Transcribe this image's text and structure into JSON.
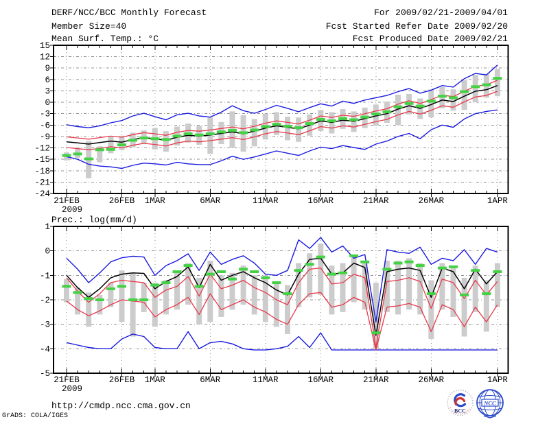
{
  "header": {
    "title": "DERF/NCC/BCC Monthly Forecast",
    "for_range": "For 2009/02/21-2009/04/01",
    "member_size": "Member Size=40",
    "fcst_started": "Fcst Started Refer Date 2009/02/20",
    "temp_label": "Mean Surf. Temp.: °C",
    "fcst_produced": "Fcst Produced Date 2009/02/21",
    "precip_label": "Prec.: log(mm/d)"
  },
  "footer": {
    "url": "http://cmdp.ncc.cma.gov.cn",
    "grads_credit": "GrADS: COLA/IGES",
    "logo_bcc_text": "BCC",
    "logo_ncc_text": "NCC"
  },
  "colors": {
    "blue": "#1a1ae0",
    "red": "#e8394a",
    "green": "#43d243",
    "black": "#000000",
    "bar_gray": "#cccccc",
    "grid_gray": "#909090",
    "frame": "#000000",
    "logo_blue": "#2b49c8",
    "logo_red": "#d03030",
    "logo_navy": "#1a2a7a"
  },
  "chart_data": [
    {
      "type": "line",
      "panel": "temperature",
      "title": "Mean Surf. Temp.: °C",
      "ylim": [
        -24,
        15
      ],
      "y_tick_values": [
        15,
        12,
        9,
        6,
        3,
        0,
        -3,
        -6,
        -9,
        -12,
        -15,
        -18,
        -21,
        -24
      ],
      "y_tick_labels": [
        "15",
        "12",
        "9",
        "6",
        "3",
        "0",
        "-3",
        "-6",
        "-9",
        "-12",
        "-15",
        "-18",
        "-21",
        "-24"
      ],
      "x_tick_labels": [
        "21FEB",
        "26FEB",
        "1MAR",
        "6MAR",
        "11MAR",
        "16MAR",
        "21MAR",
        "26MAR",
        "1APR"
      ],
      "x_tick_days": [
        0,
        5,
        8,
        13,
        18,
        23,
        28,
        33,
        39
      ],
      "year_label": "2009",
      "n_days": 40,
      "grid": true,
      "series": [
        {
          "name": "upper-envelope-blue",
          "color": "blue",
          "values": [
            -5.9,
            -6.4,
            -6.7,
            -6.2,
            -5.4,
            -4.8,
            -3.6,
            -2.9,
            -3.8,
            -4.6,
            -3.3,
            -2.9,
            -3.6,
            -3.9,
            -2.6,
            -0.9,
            -2.2,
            -2.9,
            -1.9,
            -0.8,
            -1.6,
            -2.5,
            -1.4,
            -0.4,
            -1.0,
            0.3,
            -0.3,
            0.6,
            1.2,
            1.8,
            2.8,
            3.6,
            2.4,
            3.2,
            4.4,
            4.0,
            6.2,
            7.6,
            7.2,
            9.8
          ]
        },
        {
          "name": "lower-envelope-blue",
          "color": "blue",
          "values": [
            -14.3,
            -15.0,
            -16.3,
            -16.8,
            -17.0,
            -17.4,
            -16.6,
            -16.0,
            -16.2,
            -16.5,
            -15.8,
            -16.2,
            -16.4,
            -16.4,
            -15.4,
            -14.2,
            -15.0,
            -14.4,
            -13.6,
            -12.8,
            -13.4,
            -14.0,
            -12.8,
            -11.8,
            -12.2,
            -11.4,
            -11.9,
            -12.4,
            -11.0,
            -10.2,
            -9.0,
            -8.2,
            -9.6,
            -7.2,
            -6.0,
            -6.6,
            -4.4,
            -3.0,
            -2.4,
            -2.0
          ]
        },
        {
          "name": "upper-red",
          "color": "red",
          "values": [
            -9.1,
            -9.4,
            -9.7,
            -9.3,
            -8.9,
            -9.2,
            -8.5,
            -8.0,
            -8.3,
            -8.7,
            -7.9,
            -7.4,
            -7.6,
            -7.3,
            -6.9,
            -6.5,
            -7.0,
            -6.3,
            -5.5,
            -4.9,
            -5.3,
            -5.7,
            -4.7,
            -3.6,
            -4.0,
            -3.4,
            -3.7,
            -3.0,
            -2.3,
            -1.7,
            -0.5,
            0.4,
            -0.3,
            0.7,
            1.9,
            1.5,
            2.9,
            4.2,
            4.6,
            5.8
          ]
        },
        {
          "name": "lower-red",
          "color": "red",
          "values": [
            -11.9,
            -12.2,
            -12.5,
            -12.1,
            -11.7,
            -12.0,
            -11.3,
            -10.8,
            -11.1,
            -11.5,
            -10.7,
            -10.2,
            -10.4,
            -10.1,
            -9.7,
            -9.3,
            -9.8,
            -9.1,
            -8.3,
            -7.7,
            -8.1,
            -8.5,
            -7.5,
            -6.4,
            -6.8,
            -6.2,
            -6.5,
            -5.8,
            -5.1,
            -4.5,
            -3.3,
            -2.4,
            -3.1,
            -2.1,
            -0.9,
            -1.3,
            0.1,
            1.4,
            1.8,
            2.9
          ]
        },
        {
          "name": "ensemble-mean-black",
          "color": "black",
          "values": [
            -10.4,
            -10.7,
            -11.0,
            -10.6,
            -10.2,
            -10.5,
            -9.8,
            -9.3,
            -9.6,
            -10.0,
            -9.2,
            -8.7,
            -8.9,
            -8.6,
            -8.2,
            -7.8,
            -8.3,
            -7.6,
            -6.8,
            -6.2,
            -6.6,
            -7.0,
            -6.0,
            -4.9,
            -5.3,
            -4.7,
            -5.0,
            -4.3,
            -3.6,
            -3.0,
            -1.8,
            -0.9,
            -1.6,
            -0.6,
            0.6,
            0.2,
            1.6,
            2.9,
            3.3,
            4.4
          ]
        },
        {
          "name": "obs-green-dash",
          "color": "green",
          "style": "thick-dash",
          "values": [
            -14.0,
            -13.6,
            -14.9,
            -12.5,
            -12.4,
            -11.2,
            -10.0,
            -9.4,
            -9.6,
            -9.8,
            -8.9,
            -8.3,
            -8.6,
            -8.3,
            -7.8,
            -7.4,
            -8.0,
            -7.3,
            -6.4,
            -5.8,
            -6.3,
            -6.7,
            -5.6,
            -4.5,
            -4.9,
            -4.3,
            -4.6,
            -3.9,
            -3.1,
            -2.5,
            -1.2,
            -0.3,
            -1.0,
            0.3,
            1.6,
            1.2,
            2.8,
            4.1,
            4.6,
            6.3
          ]
        }
      ],
      "bars": {
        "name": "ensemble-spread-bars",
        "color": "bar_gray",
        "low": [
          -15.3,
          -14.6,
          -20.0,
          -15.8,
          -13.4,
          -12.6,
          -11.8,
          -11.0,
          -12.4,
          -13.0,
          -11.4,
          -10.6,
          -11.2,
          -13.6,
          -11.0,
          -12.0,
          -13.0,
          -11.6,
          -9.8,
          -8.6,
          -10.0,
          -10.4,
          -8.8,
          -7.6,
          -8.2,
          -7.0,
          -7.8,
          -6.8,
          -6.2,
          -5.4,
          -6.0,
          -3.2,
          -4.4,
          -4.0,
          -1.6,
          -2.2,
          -2.0,
          0.0,
          1.2,
          1.6
        ],
        "high": [
          -13.2,
          -12.0,
          -10.2,
          -11.6,
          -9.0,
          -8.8,
          -8.0,
          -7.4,
          -6.8,
          -7.6,
          -6.4,
          -5.6,
          -6.2,
          -4.0,
          -5.2,
          -2.4,
          -3.4,
          -4.4,
          -3.0,
          -2.6,
          -3.8,
          -4.0,
          -3.2,
          -2.0,
          -2.6,
          -1.8,
          -2.4,
          -1.4,
          -0.6,
          0.2,
          2.0,
          2.2,
          1.0,
          3.4,
          4.0,
          3.4,
          5.8,
          7.2,
          7.4,
          8.8
        ]
      }
    },
    {
      "type": "line",
      "panel": "precipitation",
      "title": "Prec.: log(mm/d)",
      "ylim": [
        -5,
        1
      ],
      "y_tick_values": [
        1,
        0,
        -1,
        -2,
        -3,
        -4,
        -5
      ],
      "y_tick_labels": [
        "1",
        "0",
        "-1",
        "-2",
        "-3",
        "-4",
        "-5"
      ],
      "x_tick_labels": [
        "21FEB",
        "26FEB",
        "1MAR",
        "6MAR",
        "11MAR",
        "16MAR",
        "21MAR",
        "26MAR",
        "1APR"
      ],
      "x_tick_days": [
        0,
        5,
        8,
        13,
        18,
        23,
        28,
        33,
        39
      ],
      "year_label": "2009",
      "n_days": 40,
      "grid": true,
      "series": [
        {
          "name": "upper-envelope-blue",
          "color": "blue",
          "values": [
            -0.3,
            -0.75,
            -1.3,
            -0.9,
            -0.45,
            -0.28,
            -0.22,
            -0.25,
            -1.0,
            -0.6,
            -0.4,
            -0.12,
            -0.8,
            -0.05,
            -0.55,
            -0.35,
            -0.2,
            -0.5,
            -0.95,
            -1.0,
            -0.8,
            0.45,
            0.1,
            0.55,
            -0.05,
            0.2,
            -0.3,
            -0.15,
            -2.9,
            0.05,
            -0.05,
            -0.1,
            0.15,
            -0.55,
            -0.3,
            -0.4,
            0.05,
            -0.55,
            0.1,
            -0.05
          ]
        },
        {
          "name": "lower-envelope-blue",
          "color": "blue",
          "values": [
            -3.75,
            -3.85,
            -3.95,
            -4.0,
            -4.0,
            -3.6,
            -3.4,
            -3.5,
            -3.95,
            -4.0,
            -4.0,
            -3.3,
            -4.0,
            -3.75,
            -3.7,
            -3.8,
            -4.0,
            -4.05,
            -4.05,
            -4.0,
            -3.9,
            -3.5,
            -3.95,
            -3.35,
            -4.05,
            -4.05,
            -4.05,
            -4.05,
            -4.05,
            -4.05,
            -4.05,
            -4.05,
            -4.05,
            -4.05,
            -4.05,
            -4.05,
            -4.05,
            -4.05,
            -4.05,
            -4.05
          ]
        },
        {
          "name": "upper-red",
          "color": "red",
          "values": [
            -1.1,
            -1.65,
            -2.1,
            -1.75,
            -1.3,
            -1.2,
            -1.25,
            -1.3,
            -1.9,
            -1.6,
            -1.45,
            -1.05,
            -1.85,
            -0.95,
            -1.55,
            -1.4,
            -1.2,
            -1.5,
            -1.7,
            -2.0,
            -2.2,
            -1.3,
            -0.75,
            -0.7,
            -1.35,
            -1.3,
            -0.95,
            -1.1,
            -3.95,
            -1.25,
            -1.2,
            -1.1,
            -1.25,
            -2.35,
            -1.15,
            -1.3,
            -1.95,
            -1.2,
            -1.8,
            -1.25
          ]
        },
        {
          "name": "lower-red",
          "color": "red",
          "values": [
            -2.05,
            -2.4,
            -2.65,
            -2.45,
            -2.2,
            -2.0,
            -2.05,
            -2.1,
            -2.7,
            -2.4,
            -2.2,
            -1.9,
            -2.6,
            -1.75,
            -2.4,
            -2.2,
            -2.0,
            -2.3,
            -2.5,
            -2.8,
            -3.0,
            -2.2,
            -1.75,
            -1.7,
            -2.3,
            -2.2,
            -1.9,
            -2.1,
            -4.05,
            -2.3,
            -2.25,
            -2.15,
            -2.3,
            -3.3,
            -2.2,
            -2.4,
            -3.1,
            -2.3,
            -2.9,
            -2.2
          ]
        },
        {
          "name": "ensemble-mean-black",
          "color": "black",
          "values": [
            -1.0,
            -1.5,
            -1.9,
            -1.55,
            -1.1,
            -0.95,
            -0.9,
            -0.92,
            -1.55,
            -1.25,
            -1.05,
            -0.65,
            -1.5,
            -0.55,
            -1.2,
            -1.0,
            -0.85,
            -1.1,
            -1.3,
            -1.6,
            -1.8,
            -0.95,
            -0.35,
            -0.3,
            -0.95,
            -0.9,
            -0.5,
            -0.68,
            -3.45,
            -0.85,
            -0.75,
            -0.7,
            -0.8,
            -1.9,
            -0.7,
            -0.85,
            -1.55,
            -0.75,
            -1.35,
            -0.85
          ]
        },
        {
          "name": "obs-green-dash",
          "color": "green",
          "style": "thick-dash",
          "values": [
            -1.45,
            -1.7,
            -1.95,
            -2.0,
            -1.55,
            -1.45,
            -2.0,
            -2.0,
            -1.4,
            -1.3,
            -0.85,
            -0.6,
            -1.45,
            -0.95,
            -0.85,
            -1.15,
            -0.75,
            -0.85,
            -1.1,
            -1.3,
            -1.75,
            -0.8,
            -0.55,
            -0.25,
            -0.95,
            -0.9,
            -0.2,
            -0.45,
            -3.35,
            -0.75,
            -0.5,
            -0.45,
            -0.6,
            -1.75,
            -0.7,
            -0.65,
            -1.8,
            -0.8,
            -1.75,
            -0.85
          ]
        }
      ],
      "bars": {
        "name": "ensemble-spread-bars",
        "color": "bar_gray",
        "low": [
          -2.1,
          -2.6,
          -3.1,
          -2.6,
          -2.3,
          -2.9,
          -3.5,
          -2.5,
          -3.1,
          -2.6,
          -2.4,
          -2.2,
          -3.0,
          -2.9,
          -2.7,
          -2.4,
          -2.2,
          -2.6,
          -2.9,
          -3.1,
          -3.4,
          -2.3,
          -1.9,
          -1.8,
          -2.6,
          -2.5,
          -2.1,
          -2.4,
          -4.0,
          -2.5,
          -2.6,
          -2.4,
          -2.6,
          -3.6,
          -2.4,
          -2.7,
          -3.5,
          -2.5,
          -3.3,
          -2.3
        ],
        "high": [
          -1.15,
          -1.5,
          -1.7,
          -1.8,
          -1.3,
          -0.8,
          -0.9,
          -1.3,
          -1.3,
          -1.2,
          -0.9,
          -0.5,
          -1.1,
          -0.4,
          -1.0,
          -0.9,
          -0.6,
          -1.0,
          -1.0,
          -1.3,
          -1.4,
          -0.5,
          -0.1,
          0.3,
          -0.6,
          -0.5,
          -0.2,
          -0.4,
          -1.3,
          -0.4,
          -0.4,
          -0.3,
          -0.5,
          -1.2,
          -0.5,
          -0.6,
          -1.1,
          -0.6,
          -1.2,
          -0.5
        ]
      }
    }
  ]
}
